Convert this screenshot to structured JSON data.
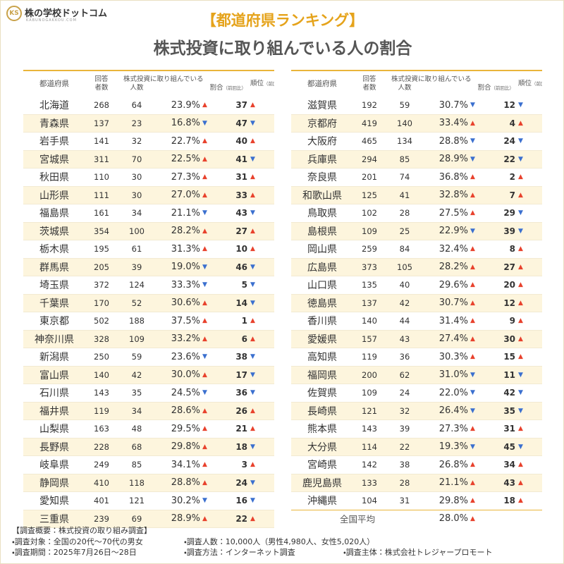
{
  "logo": {
    "name": "株の学校ドットコム",
    "url": "KABUNOGAKKOU.COM"
  },
  "header": {
    "title": "【都道府県ランキング】",
    "subtitle": "株式投資に取り組んでいる人の割合"
  },
  "table_header": {
    "prefecture": "都道府県",
    "respondents": [
      "回答",
      "者数"
    ],
    "investors_group": "株式投資に取り組んでいる",
    "investors": "人数",
    "rate": "割合",
    "rate_note": "（前回比）",
    "rank": "順位",
    "rank_note": "（前回比）"
  },
  "arrow_colors": {
    "▲": "#e8412c",
    "▼": "#3a6fcf"
  },
  "tables": [
    {
      "rows": [
        [
          "北海道",
          268,
          64,
          "23.9%",
          "▲",
          37,
          "▲"
        ],
        [
          "青森県",
          137,
          23,
          "16.8%",
          "▼",
          47,
          "▼"
        ],
        [
          "岩手県",
          141,
          32,
          "22.7%",
          "▲",
          40,
          "▲"
        ],
        [
          "宮城県",
          311,
          70,
          "22.5%",
          "▲",
          41,
          "▼"
        ],
        [
          "秋田県",
          110,
          30,
          "27.3%",
          "▲",
          31,
          "▲"
        ],
        [
          "山形県",
          111,
          30,
          "27.0%",
          "▲",
          33,
          "▲"
        ],
        [
          "福島県",
          161,
          34,
          "21.1%",
          "▼",
          43,
          "▼"
        ],
        [
          "茨城県",
          354,
          100,
          "28.2%",
          "▲",
          27,
          "▲"
        ],
        [
          "栃木県",
          195,
          61,
          "31.3%",
          "▲",
          10,
          "▲"
        ],
        [
          "群馬県",
          205,
          39,
          "19.0%",
          "▼",
          46,
          "▼"
        ],
        [
          "埼玉県",
          372,
          124,
          "33.3%",
          "▼",
          5,
          "▼"
        ],
        [
          "千葉県",
          170,
          52,
          "30.6%",
          "▲",
          14,
          "▼"
        ],
        [
          "東京都",
          502,
          188,
          "37.5%",
          "▲",
          1,
          "▲"
        ],
        [
          "神奈川県",
          328,
          109,
          "33.2%",
          "▲",
          6,
          "▲"
        ],
        [
          "新潟県",
          250,
          59,
          "23.6%",
          "▼",
          38,
          "▼"
        ],
        [
          "富山県",
          140,
          42,
          "30.0%",
          "▲",
          17,
          "▼"
        ],
        [
          "石川県",
          143,
          35,
          "24.5%",
          "▼",
          36,
          "▼"
        ],
        [
          "福井県",
          119,
          34,
          "28.6%",
          "▲",
          26,
          "▲"
        ],
        [
          "山梨県",
          163,
          48,
          "29.5%",
          "▲",
          21,
          "▲"
        ],
        [
          "長野県",
          228,
          68,
          "29.8%",
          "▲",
          18,
          "▼"
        ],
        [
          "岐阜県",
          249,
          85,
          "34.1%",
          "▲",
          3,
          "▲"
        ],
        [
          "静岡県",
          410,
          118,
          "28.8%",
          "▲",
          24,
          "▼"
        ],
        [
          "愛知県",
          401,
          121,
          "30.2%",
          "▼",
          16,
          "▼"
        ],
        [
          "三重県",
          239,
          69,
          "28.9%",
          "▲",
          22,
          "▲"
        ]
      ]
    },
    {
      "rows": [
        [
          "滋賀県",
          192,
          59,
          "30.7%",
          "▼",
          12,
          "▼"
        ],
        [
          "京都府",
          419,
          140,
          "33.4%",
          "▲",
          4,
          "▲"
        ],
        [
          "大阪府",
          465,
          134,
          "28.8%",
          "▼",
          24,
          "▼"
        ],
        [
          "兵庫県",
          294,
          85,
          "28.9%",
          "▼",
          22,
          "▼"
        ],
        [
          "奈良県",
          201,
          74,
          "36.8%",
          "▲",
          2,
          "▲"
        ],
        [
          "和歌山県",
          125,
          41,
          "32.8%",
          "▲",
          7,
          "▲"
        ],
        [
          "鳥取県",
          102,
          28,
          "27.5%",
          "▲",
          29,
          "▼"
        ],
        [
          "島根県",
          109,
          25,
          "22.9%",
          "▼",
          39,
          "▼"
        ],
        [
          "岡山県",
          259,
          84,
          "32.4%",
          "▲",
          8,
          "▲"
        ],
        [
          "広島県",
          373,
          105,
          "28.2%",
          "▲",
          27,
          "▲"
        ],
        [
          "山口県",
          135,
          40,
          "29.6%",
          "▲",
          20,
          "▲"
        ],
        [
          "徳島県",
          137,
          42,
          "30.7%",
          "▲",
          12,
          "▲"
        ],
        [
          "香川県",
          140,
          44,
          "31.4%",
          "▲",
          9,
          "▲"
        ],
        [
          "愛媛県",
          157,
          43,
          "27.4%",
          "▲",
          30,
          "▲"
        ],
        [
          "高知県",
          119,
          36,
          "30.3%",
          "▲",
          15,
          "▲"
        ],
        [
          "福岡県",
          200,
          62,
          "31.0%",
          "▼",
          11,
          "▼"
        ],
        [
          "佐賀県",
          109,
          24,
          "22.0%",
          "▼",
          42,
          "▼"
        ],
        [
          "長崎県",
          121,
          32,
          "26.4%",
          "▼",
          35,
          "▼"
        ],
        [
          "熊本県",
          143,
          39,
          "27.3%",
          "▲",
          31,
          "▲"
        ],
        [
          "大分県",
          114,
          22,
          "19.3%",
          "▼",
          45,
          "▼"
        ],
        [
          "宮崎県",
          142,
          38,
          "26.8%",
          "▲",
          34,
          "▲"
        ],
        [
          "鹿児島県",
          133,
          28,
          "21.1%",
          "▲",
          43,
          "▲"
        ],
        [
          "沖縄県",
          104,
          31,
          "29.8%",
          "▲",
          18,
          "▲"
        ]
      ],
      "average": {
        "label": "全国平均",
        "rate": "28.0%",
        "arrow": "▲"
      }
    }
  ],
  "footer": {
    "heading": "【調査概要：株式投資の取り組み調査】",
    "lines": [
      [
        "・調査対象：全国の20代～70代の男女",
        "・調査人数：10,000人（男性4,980人、女性5,020人）"
      ],
      [
        "・調査期間：2025年7月26日～28日",
        "・調査方法：インターネット調査",
        "・調査主体：株式会社トレジャープロモート"
      ]
    ]
  }
}
